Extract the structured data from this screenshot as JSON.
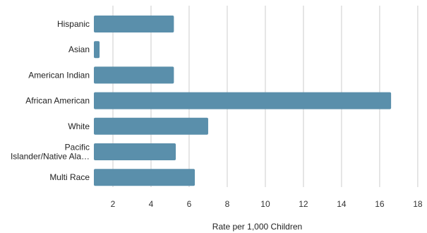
{
  "chart_data": {
    "type": "bar",
    "orientation": "horizontal",
    "categories": [
      [
        "Hispanic"
      ],
      [
        "Asian"
      ],
      [
        "American Indian"
      ],
      [
        "African American"
      ],
      [
        "White"
      ],
      [
        "Pacific",
        "Islander/Native Ala…"
      ],
      [
        "Multi Race"
      ]
    ],
    "values": [
      5.2,
      1.3,
      5.2,
      16.6,
      7.0,
      5.3,
      6.3
    ],
    "xlabel": "Rate per 1,000 Children",
    "ylabel": "",
    "xlim": [
      1,
      18.3
    ],
    "xticks": [
      2,
      4,
      6,
      8,
      10,
      12,
      14,
      16,
      18
    ],
    "grid": true,
    "bar_color": "#5a8fab"
  }
}
